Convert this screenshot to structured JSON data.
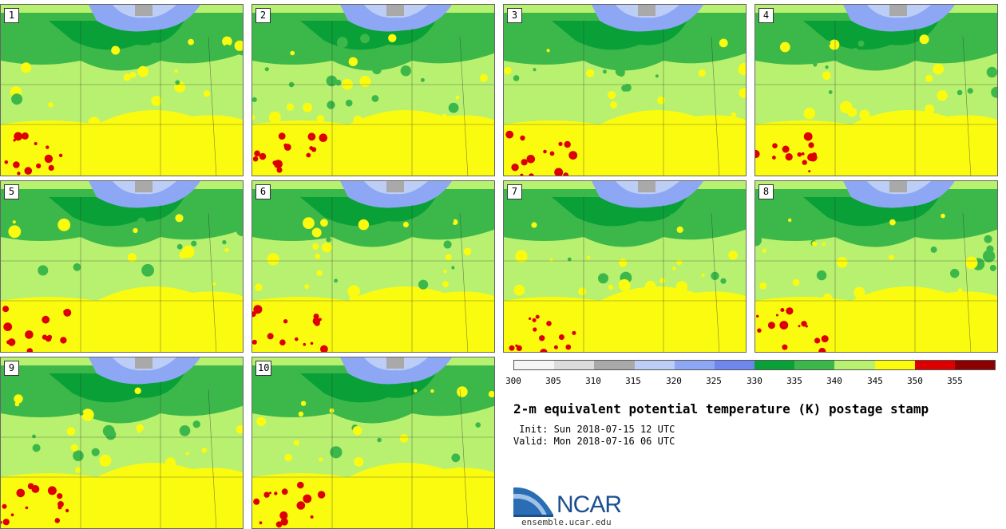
{
  "panels": [
    {
      "label": "1"
    },
    {
      "label": "2"
    },
    {
      "label": "3"
    },
    {
      "label": "4"
    },
    {
      "label": "5"
    },
    {
      "label": "6"
    },
    {
      "label": "7"
    },
    {
      "label": "8"
    },
    {
      "label": "9"
    },
    {
      "label": "10"
    }
  ],
  "colorbar": {
    "colors": [
      "#f5f5f5",
      "#dcdcdc",
      "#a9a9a9",
      "#bccef5",
      "#8ea7f5",
      "#6f86ee",
      "#0aa038",
      "#3cb84a",
      "#b8f070",
      "#fbfb10",
      "#dc0000",
      "#8b0000"
    ],
    "ticks": [
      "300",
      "305",
      "310",
      "315",
      "320",
      "325",
      "330",
      "335",
      "340",
      "345",
      "350",
      "355"
    ]
  },
  "title": "2-m equivalent potential temperature (K) postage stamp",
  "init": " Init: Sun 2018-07-15 12 UTC",
  "valid": "Valid: Mon 2018-07-16 06 UTC",
  "logo": {
    "name": "NCAR",
    "site": "ensemble.ucar.edu"
  }
}
